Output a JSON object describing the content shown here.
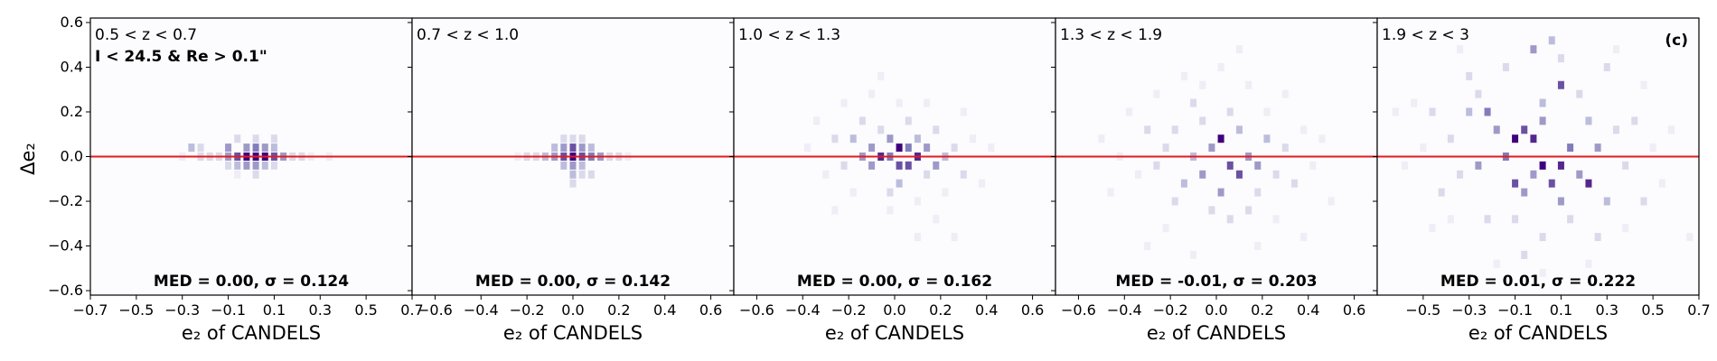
{
  "figure": {
    "ylabel": "Δe₂",
    "colormap": [
      "#fcfbfd",
      "#efedf5",
      "#dadaeb",
      "#bcbddc",
      "#9e9ac8",
      "#807dba",
      "#6a51a3",
      "#54278f",
      "#3f007d"
    ],
    "refline_color": "#e41a1c",
    "axis_color": "#000000",
    "text_color": "#000000"
  },
  "chart_data": [
    {
      "type": "heatmap",
      "panel_label": "0.5 < z < 0.7",
      "selection_label": "I < 24.5 & Re > 0.1\"",
      "corner_label": "",
      "stats": "MED = 0.00, σ = 0.124",
      "xlabel": "e₂ of CANDELS",
      "xlim": [
        -0.7,
        0.7
      ],
      "ylim": [
        -0.62,
        0.62
      ],
      "xticks": [
        "−0.7",
        "−0.5",
        "−0.3",
        "−0.1",
        "0.1",
        "0.3",
        "0.5",
        "0.7"
      ],
      "xtick_values": [
        -0.7,
        -0.5,
        -0.3,
        -0.1,
        0.1,
        0.3,
        0.5,
        0.7
      ],
      "yticks": [
        "−0.6",
        "−0.4",
        "−0.2",
        "0.0",
        "0.2",
        "0.4",
        "0.6"
      ],
      "ytick_values": [
        -0.6,
        -0.4,
        -0.2,
        0.0,
        0.2,
        0.4,
        0.6
      ],
      "median": 0.0,
      "sigma": 0.124,
      "grid": false,
      "cells": [
        [
          -0.02,
          0.0,
          1.0
        ],
        [
          0.02,
          0.0,
          1.0
        ],
        [
          0.06,
          0.0,
          0.95
        ],
        [
          -0.06,
          0.0,
          0.75
        ],
        [
          0.1,
          0.0,
          0.75
        ],
        [
          0.14,
          0.0,
          0.45
        ],
        [
          -0.1,
          0.0,
          0.5
        ],
        [
          -0.02,
          0.04,
          0.55
        ],
        [
          0.02,
          0.04,
          0.6
        ],
        [
          0.06,
          0.04,
          0.5
        ],
        [
          -0.1,
          0.04,
          0.45
        ],
        [
          -0.26,
          0.04,
          0.4
        ],
        [
          -0.22,
          0.04,
          0.3
        ],
        [
          0.1,
          0.04,
          0.35
        ],
        [
          -0.02,
          -0.04,
          0.45
        ],
        [
          0.02,
          -0.04,
          0.45
        ],
        [
          0.06,
          -0.04,
          0.4
        ],
        [
          -0.06,
          -0.04,
          0.35
        ],
        [
          0.1,
          -0.04,
          0.3
        ],
        [
          -0.1,
          -0.04,
          0.25
        ],
        [
          -0.14,
          0.0,
          0.3
        ],
        [
          0.18,
          0.0,
          0.3
        ],
        [
          -0.18,
          0.0,
          0.25
        ],
        [
          0.22,
          0.0,
          0.2
        ],
        [
          -0.22,
          0.0,
          0.2
        ],
        [
          0.26,
          0.0,
          0.15
        ],
        [
          -0.3,
          0.0,
          0.15
        ],
        [
          0.34,
          0.0,
          0.1
        ],
        [
          0.02,
          0.08,
          0.25
        ],
        [
          -0.06,
          0.08,
          0.2
        ],
        [
          0.1,
          0.08,
          0.2
        ],
        [
          0.02,
          -0.08,
          0.2
        ],
        [
          -0.06,
          -0.08,
          0.15
        ]
      ]
    },
    {
      "type": "heatmap",
      "panel_label": "0.7 < z < 1.0",
      "selection_label": "",
      "corner_label": "",
      "stats": "MED = 0.00, σ = 0.142",
      "xlabel": "e₂ of CANDELS",
      "xlim": [
        -0.7,
        0.7
      ],
      "ylim": [
        -0.62,
        0.62
      ],
      "xticks": [
        "−0.6",
        "−0.4",
        "−0.2",
        "0.0",
        "0.2",
        "0.4",
        "0.6"
      ],
      "xtick_values": [
        -0.6,
        -0.4,
        -0.2,
        0.0,
        0.2,
        0.4,
        0.6
      ],
      "yticks": [],
      "ytick_values": [
        -0.6,
        -0.4,
        -0.2,
        0.0,
        0.2,
        0.4,
        0.6
      ],
      "median": 0.0,
      "sigma": 0.142,
      "grid": false,
      "cells": [
        [
          0.0,
          0.0,
          1.0
        ],
        [
          0.04,
          0.0,
          0.8
        ],
        [
          -0.04,
          0.0,
          0.7
        ],
        [
          0.08,
          0.0,
          0.6
        ],
        [
          -0.08,
          0.0,
          0.45
        ],
        [
          0.12,
          0.0,
          0.45
        ],
        [
          -0.12,
          0.0,
          0.35
        ],
        [
          0.16,
          0.0,
          0.3
        ],
        [
          0.0,
          0.04,
          0.7
        ],
        [
          -0.04,
          0.04,
          0.55
        ],
        [
          0.04,
          0.04,
          0.55
        ],
        [
          -0.08,
          0.04,
          0.4
        ],
        [
          0.08,
          0.04,
          0.4
        ],
        [
          0.0,
          -0.04,
          0.5
        ],
        [
          0.04,
          -0.04,
          0.4
        ],
        [
          -0.04,
          -0.04,
          0.4
        ],
        [
          0.0,
          -0.08,
          0.35
        ],
        [
          0.04,
          -0.08,
          0.3
        ],
        [
          -0.16,
          0.0,
          0.25
        ],
        [
          -0.2,
          0.0,
          0.2
        ],
        [
          0.2,
          0.0,
          0.2
        ],
        [
          -0.24,
          0.0,
          0.15
        ],
        [
          0.24,
          0.0,
          0.15
        ],
        [
          0.0,
          0.08,
          0.3
        ],
        [
          0.04,
          0.08,
          0.25
        ],
        [
          -0.04,
          0.08,
          0.2
        ],
        [
          0.0,
          -0.12,
          0.2
        ],
        [
          0.08,
          -0.08,
          0.2
        ]
      ]
    },
    {
      "type": "heatmap",
      "panel_label": "1.0 < z < 1.3",
      "selection_label": "",
      "corner_label": "",
      "stats": "MED = 0.00, σ = 0.162",
      "xlabel": "e₂ of CANDELS",
      "xlim": [
        -0.7,
        0.7
      ],
      "ylim": [
        -0.62,
        0.62
      ],
      "xticks": [
        "−0.6",
        "−0.4",
        "−0.2",
        "0.0",
        "0.2",
        "0.4",
        "0.6"
      ],
      "xtick_values": [
        -0.6,
        -0.4,
        -0.2,
        0.0,
        0.2,
        0.4,
        0.6
      ],
      "yticks": [],
      "ytick_values": [
        -0.6,
        -0.4,
        -0.2,
        0.0,
        0.2,
        0.4,
        0.6
      ],
      "median": 0.0,
      "sigma": 0.162,
      "grid": false,
      "cells": [
        [
          0.02,
          0.04,
          1.0
        ],
        [
          -0.06,
          0.0,
          0.9
        ],
        [
          0.1,
          0.0,
          0.85
        ],
        [
          0.02,
          -0.04,
          0.8
        ],
        [
          0.06,
          -0.04,
          0.7
        ],
        [
          -0.02,
          0.0,
          0.65
        ],
        [
          0.06,
          0.04,
          0.6
        ],
        [
          -0.1,
          0.04,
          0.55
        ],
        [
          -0.02,
          0.08,
          0.55
        ],
        [
          0.14,
          0.04,
          0.5
        ],
        [
          -0.14,
          0.0,
          0.45
        ],
        [
          0.18,
          -0.04,
          0.45
        ],
        [
          -0.1,
          -0.04,
          0.45
        ],
        [
          0.1,
          0.08,
          0.4
        ],
        [
          -0.18,
          0.08,
          0.35
        ],
        [
          0.22,
          0.0,
          0.35
        ],
        [
          -0.06,
          0.12,
          0.3
        ],
        [
          0.02,
          -0.12,
          0.35
        ],
        [
          0.14,
          -0.08,
          0.3
        ],
        [
          -0.22,
          -0.04,
          0.3
        ],
        [
          0.26,
          0.04,
          0.25
        ],
        [
          -0.26,
          0.08,
          0.2
        ],
        [
          0.3,
          -0.08,
          0.2
        ],
        [
          -0.14,
          0.16,
          0.2
        ],
        [
          0.06,
          0.16,
          0.25
        ],
        [
          0.18,
          0.12,
          0.2
        ],
        [
          -0.02,
          -0.16,
          0.25
        ],
        [
          0.1,
          -0.2,
          0.15
        ],
        [
          -0.3,
          -0.08,
          0.15
        ],
        [
          0.34,
          0.08,
          0.15
        ],
        [
          -0.18,
          -0.16,
          0.15
        ],
        [
          0.22,
          -0.16,
          0.15
        ],
        [
          -0.34,
          0.16,
          0.1
        ],
        [
          0.38,
          -0.12,
          0.1
        ],
        [
          0.02,
          0.24,
          0.15
        ],
        [
          -0.1,
          0.28,
          0.1
        ],
        [
          0.14,
          0.24,
          0.1
        ],
        [
          -0.02,
          -0.24,
          0.15
        ],
        [
          0.18,
          -0.28,
          0.1
        ],
        [
          -0.22,
          0.24,
          0.1
        ],
        [
          0.3,
          0.2,
          0.1
        ],
        [
          -0.38,
          0.04,
          0.1
        ],
        [
          0.42,
          0.04,
          0.1
        ],
        [
          -0.06,
          0.36,
          0.08
        ],
        [
          0.1,
          -0.36,
          0.08
        ],
        [
          -0.26,
          -0.24,
          0.08
        ],
        [
          0.26,
          -0.36,
          0.08
        ],
        [
          0.06,
          0.44,
          0.06
        ],
        [
          -0.14,
          -0.4,
          0.06
        ]
      ]
    },
    {
      "type": "heatmap",
      "panel_label": "1.3 < z < 1.9",
      "selection_label": "",
      "corner_label": "",
      "stats": "MED = -0.01, σ = 0.203",
      "xlabel": "e₂ of CANDELS",
      "xlim": [
        -0.7,
        0.7
      ],
      "ylim": [
        -0.62,
        0.62
      ],
      "xticks": [
        "−0.6",
        "−0.4",
        "−0.2",
        "0.0",
        "0.2",
        "0.4",
        "0.6"
      ],
      "xtick_values": [
        -0.6,
        -0.4,
        -0.2,
        0.0,
        0.2,
        0.4,
        0.6
      ],
      "yticks": [],
      "ytick_values": [
        -0.6,
        -0.4,
        -0.2,
        0.0,
        0.2,
        0.4,
        0.6
      ],
      "median": -0.01,
      "sigma": 0.203,
      "grid": false,
      "cells": [
        [
          0.02,
          0.08,
          1.0
        ],
        [
          0.06,
          -0.04,
          0.75
        ],
        [
          0.1,
          -0.08,
          0.7
        ],
        [
          -0.02,
          0.04,
          0.55
        ],
        [
          0.14,
          0.0,
          0.5
        ],
        [
          -0.06,
          -0.08,
          0.5
        ],
        [
          0.18,
          -0.04,
          0.45
        ],
        [
          0.02,
          -0.16,
          0.45
        ],
        [
          -0.1,
          0.0,
          0.4
        ],
        [
          0.1,
          0.12,
          0.4
        ],
        [
          -0.14,
          -0.12,
          0.35
        ],
        [
          0.22,
          0.08,
          0.35
        ],
        [
          -0.06,
          0.16,
          0.3
        ],
        [
          0.18,
          -0.16,
          0.3
        ],
        [
          -0.22,
          0.04,
          0.3
        ],
        [
          0.26,
          -0.08,
          0.3
        ],
        [
          -0.18,
          0.12,
          0.25
        ],
        [
          0.06,
          0.2,
          0.25
        ],
        [
          -0.02,
          -0.24,
          0.25
        ],
        [
          0.14,
          -0.24,
          0.25
        ],
        [
          -0.26,
          -0.04,
          0.2
        ],
        [
          0.3,
          0.04,
          0.2
        ],
        [
          -0.3,
          0.12,
          0.2
        ],
        [
          0.34,
          -0.12,
          0.2
        ],
        [
          -0.1,
          0.24,
          0.2
        ],
        [
          0.22,
          0.2,
          0.15
        ],
        [
          -0.18,
          -0.2,
          0.2
        ],
        [
          0.06,
          -0.28,
          0.2
        ],
        [
          -0.34,
          -0.08,
          0.15
        ],
        [
          0.38,
          0.12,
          0.15
        ],
        [
          -0.38,
          0.2,
          0.12
        ],
        [
          0.42,
          -0.04,
          0.12
        ],
        [
          -0.06,
          0.32,
          0.15
        ],
        [
          0.14,
          0.32,
          0.12
        ],
        [
          -0.22,
          -0.32,
          0.12
        ],
        [
          0.26,
          -0.28,
          0.12
        ],
        [
          -0.42,
          0.0,
          0.12
        ],
        [
          0.46,
          0.08,
          0.1
        ],
        [
          0.02,
          0.4,
          0.1
        ],
        [
          -0.14,
          0.36,
          0.1
        ],
        [
          0.18,
          -0.4,
          0.1
        ],
        [
          -0.26,
          0.28,
          0.1
        ],
        [
          0.3,
          0.28,
          0.1
        ],
        [
          -0.46,
          -0.16,
          0.1
        ],
        [
          0.5,
          -0.2,
          0.08
        ],
        [
          -0.3,
          -0.4,
          0.08
        ],
        [
          0.1,
          0.48,
          0.08
        ],
        [
          -0.1,
          -0.44,
          0.08
        ],
        [
          0.38,
          -0.36,
          0.08
        ],
        [
          -0.5,
          0.08,
          0.08
        ],
        [
          0.54,
          0.0,
          0.06
        ],
        [
          -0.18,
          0.52,
          0.06
        ],
        [
          0.22,
          0.56,
          0.06
        ],
        [
          -0.06,
          -0.52,
          0.06
        ],
        [
          0.46,
          0.36,
          0.06
        ]
      ]
    },
    {
      "type": "heatmap",
      "panel_label": "1.9 < z < 3",
      "selection_label": "",
      "corner_label": "(c)",
      "stats": "MED = 0.01, σ = 0.222",
      "xlabel": "e₂ of CANDELS",
      "xlim": [
        -0.7,
        0.7
      ],
      "ylim": [
        -0.62,
        0.62
      ],
      "xticks": [
        "−0.5",
        "−0.3",
        "−0.1",
        "0.1",
        "0.3",
        "0.5",
        "0.7"
      ],
      "xtick_values": [
        -0.5,
        -0.3,
        -0.1,
        0.1,
        0.3,
        0.5,
        0.7
      ],
      "yticks": [],
      "ytick_values": [
        -0.6,
        -0.4,
        -0.2,
        0.0,
        0.2,
        0.4,
        0.6
      ],
      "median": 0.01,
      "sigma": 0.222,
      "grid": false,
      "cells": [
        [
          -0.1,
          0.08,
          1.0
        ],
        [
          0.02,
          -0.04,
          0.95
        ],
        [
          0.1,
          -0.04,
          0.9
        ],
        [
          -0.02,
          0.08,
          0.85
        ],
        [
          -0.06,
          0.12,
          0.8
        ],
        [
          0.22,
          -0.12,
          0.85
        ],
        [
          -0.1,
          -0.12,
          0.75
        ],
        [
          0.06,
          -0.12,
          0.7
        ],
        [
          -0.14,
          0.0,
          0.6
        ],
        [
          0.14,
          0.04,
          0.6
        ],
        [
          -0.22,
          0.2,
          0.65
        ],
        [
          0.1,
          0.32,
          0.7
        ],
        [
          0.02,
          0.16,
          0.55
        ],
        [
          -0.02,
          -0.08,
          0.55
        ],
        [
          0.18,
          -0.08,
          0.5
        ],
        [
          -0.06,
          -0.16,
          0.5
        ],
        [
          0.1,
          -0.2,
          0.5
        ],
        [
          -0.18,
          0.12,
          0.45
        ],
        [
          0.26,
          0.04,
          0.45
        ],
        [
          -0.26,
          -0.04,
          0.45
        ],
        [
          0.3,
          -0.2,
          0.4
        ],
        [
          -0.3,
          0.2,
          0.4
        ],
        [
          0.02,
          0.24,
          0.4
        ],
        [
          -0.02,
          0.48,
          0.45
        ],
        [
          0.06,
          0.52,
          0.35
        ],
        [
          -0.14,
          0.4,
          0.3
        ],
        [
          0.22,
          0.16,
          0.35
        ],
        [
          -0.1,
          -0.28,
          0.3
        ],
        [
          0.14,
          -0.28,
          0.3
        ],
        [
          0.34,
          0.12,
          0.3
        ],
        [
          -0.34,
          -0.08,
          0.3
        ],
        [
          0.18,
          0.28,
          0.3
        ],
        [
          -0.26,
          0.28,
          0.3
        ],
        [
          0.38,
          -0.04,
          0.25
        ],
        [
          -0.38,
          0.08,
          0.25
        ],
        [
          0.02,
          -0.36,
          0.25
        ],
        [
          0.26,
          -0.36,
          0.25
        ],
        [
          -0.22,
          -0.28,
          0.25
        ],
        [
          0.42,
          0.16,
          0.2
        ],
        [
          -0.42,
          -0.16,
          0.2
        ],
        [
          -0.46,
          0.2,
          0.2
        ],
        [
          0.46,
          -0.2,
          0.2
        ],
        [
          0.3,
          0.4,
          0.2
        ],
        [
          -0.3,
          0.36,
          0.2
        ],
        [
          0.1,
          0.44,
          0.2
        ],
        [
          -0.06,
          -0.44,
          0.2
        ],
        [
          0.5,
          0.04,
          0.15
        ],
        [
          -0.5,
          0.04,
          0.15
        ],
        [
          0.38,
          -0.32,
          0.15
        ],
        [
          -0.38,
          -0.28,
          0.15
        ],
        [
          0.54,
          -0.12,
          0.15
        ],
        [
          -0.54,
          0.24,
          0.15
        ],
        [
          0.46,
          0.32,
          0.12
        ],
        [
          -0.46,
          -0.32,
          0.12
        ],
        [
          0.22,
          -0.48,
          0.12
        ],
        [
          -0.18,
          -0.48,
          0.12
        ],
        [
          0.58,
          0.12,
          0.1
        ],
        [
          -0.58,
          -0.04,
          0.1
        ],
        [
          0.66,
          -0.36,
          0.15
        ],
        [
          -0.62,
          0.2,
          0.1
        ],
        [
          0.02,
          -0.52,
          0.12
        ],
        [
          0.34,
          0.48,
          0.1
        ],
        [
          -0.34,
          0.48,
          0.1
        ]
      ]
    }
  ]
}
